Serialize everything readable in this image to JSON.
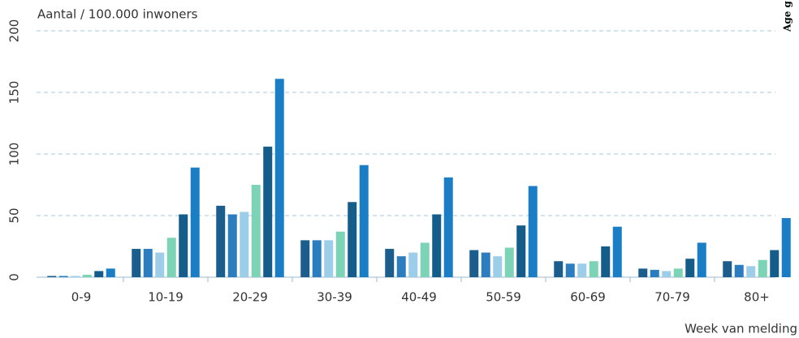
{
  "chart_data": {
    "type": "bar",
    "y_label": "Aantal / 100.000 inwoners",
    "x_label": "Week van melding",
    "legend_title": "Age g",
    "categories": [
      "0-9",
      "10-19",
      "20-29",
      "30-39",
      "40-49",
      "50-59",
      "60-69",
      "70-79",
      "80+"
    ],
    "series": [
      {
        "color": "#1b5e8e",
        "values": [
          1,
          23,
          58,
          30,
          23,
          22,
          13,
          7,
          13
        ]
      },
      {
        "color": "#2b7dbf",
        "values": [
          1,
          23,
          51,
          30,
          17,
          20,
          11,
          6,
          10
        ]
      },
      {
        "color": "#9ccde9",
        "values": [
          1,
          20,
          53,
          30,
          20,
          17,
          11,
          5,
          9
        ]
      },
      {
        "color": "#7dd3b5",
        "values": [
          2,
          32,
          75,
          37,
          28,
          24,
          13,
          7,
          14
        ]
      },
      {
        "color": "#145c8a",
        "values": [
          5,
          51,
          106,
          61,
          51,
          42,
          25,
          15,
          22
        ]
      },
      {
        "color": "#1a7ec6",
        "values": [
          7,
          89,
          161,
          91,
          81,
          74,
          41,
          28,
          48
        ]
      }
    ],
    "ylim": [
      0,
      200
    ],
    "yticks": [
      0,
      50,
      100,
      150,
      200
    ],
    "grid": true
  }
}
